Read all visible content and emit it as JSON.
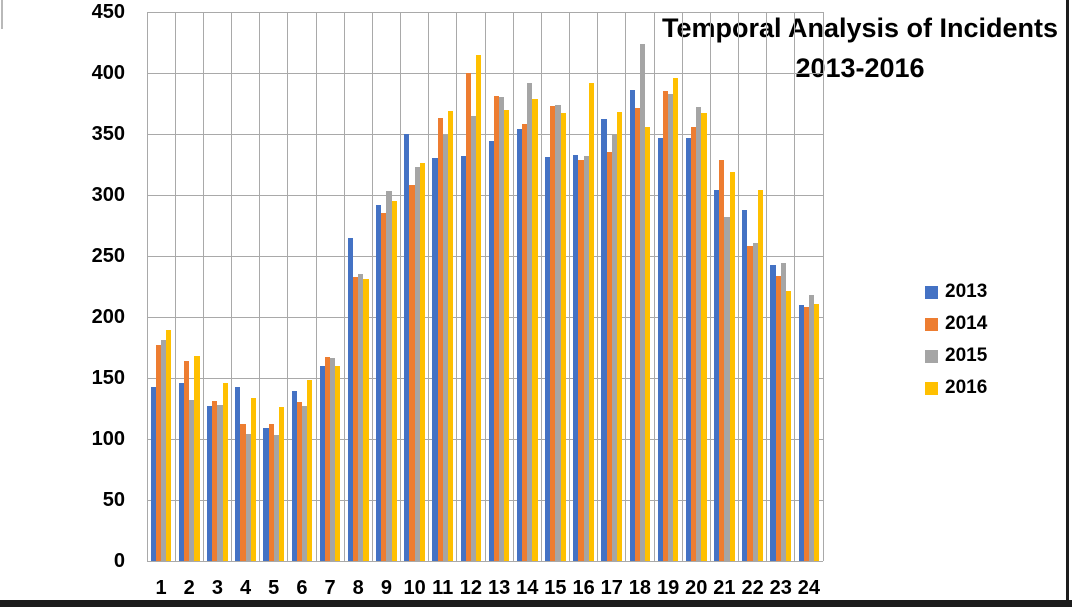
{
  "title": {
    "line1": "Temporal Analysis of Incidents",
    "line2": "2013-2016"
  },
  "chart_data": {
    "type": "bar",
    "title": "Temporal Analysis of Incidents 2013-2016",
    "xlabel": "",
    "ylabel": "",
    "ylim": [
      0,
      450
    ],
    "ytick_step": 50,
    "grid": true,
    "legend_position": "right",
    "categories": [
      "1",
      "2",
      "3",
      "4",
      "5",
      "6",
      "7",
      "8",
      "9",
      "10",
      "11",
      "12",
      "13",
      "14",
      "15",
      "16",
      "17",
      "18",
      "19",
      "20",
      "21",
      "22",
      "23",
      "24"
    ],
    "series": [
      {
        "name": "2013",
        "color": "#4472C4",
        "values": [
          143,
          146,
          127,
          143,
          109,
          139,
          160,
          265,
          292,
          350,
          330,
          332,
          344,
          354,
          331,
          333,
          362,
          386,
          347,
          347,
          304,
          288,
          243,
          210
        ]
      },
      {
        "name": "2014",
        "color": "#ED7D31",
        "values": [
          177,
          164,
          131,
          112,
          112,
          130,
          167,
          233,
          285,
          308,
          363,
          400,
          381,
          358,
          373,
          329,
          335,
          371,
          385,
          356,
          329,
          258,
          234,
          208
        ]
      },
      {
        "name": "2015",
        "color": "#A5A5A5",
        "values": [
          181,
          132,
          128,
          104,
          103,
          127,
          166,
          235,
          303,
          323,
          349,
          365,
          380,
          392,
          374,
          332,
          350,
          424,
          383,
          372,
          282,
          261,
          244,
          218
        ]
      },
      {
        "name": "2016",
        "color": "#FFC000",
        "values": [
          189,
          168,
          146,
          134,
          126,
          148,
          160,
          231,
          295,
          326,
          369,
          415,
          370,
          379,
          367,
          392,
          368,
          356,
          396,
          367,
          319,
          304,
          221,
          211
        ]
      }
    ]
  },
  "y_axis": {
    "ticks": [
      "450",
      "400",
      "350",
      "300",
      "250",
      "200",
      "150",
      "100",
      "50",
      "0"
    ]
  },
  "x_axis": {
    "labels": [
      "1",
      "2",
      "3",
      "4",
      "5",
      "6",
      "7",
      "8",
      "9",
      "10",
      "11",
      "12",
      "13",
      "14",
      "15",
      "16",
      "17",
      "18",
      "19",
      "20",
      "21",
      "22",
      "23",
      "24"
    ]
  },
  "colors": {
    "gridline": "#a9a9a9",
    "border_bar": "#1c1c1c",
    "background": "#ffffff"
  }
}
